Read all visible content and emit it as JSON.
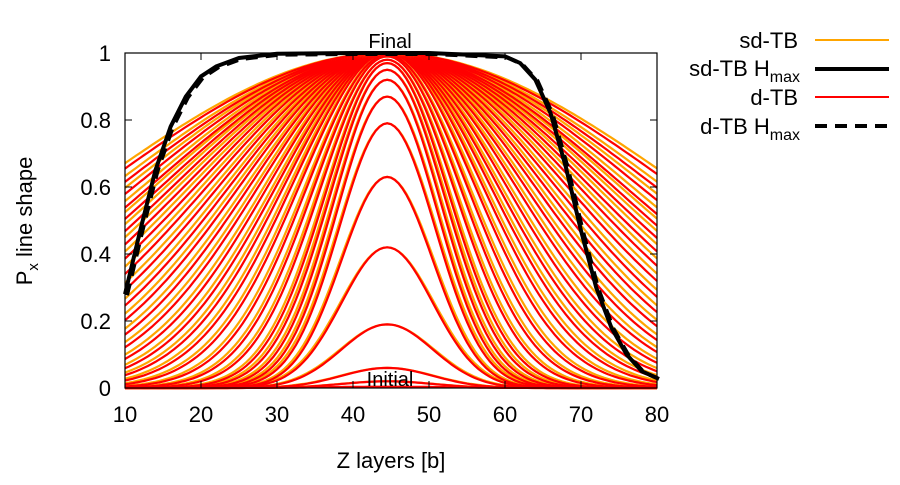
{
  "chart_data": {
    "type": "line",
    "xlabel": "Z layers [b]",
    "ylabel_main": "P",
    "ylabel_sub": "x",
    "ylabel_rest": " line shape",
    "xlim": [
      10,
      80
    ],
    "ylim": [
      0,
      1
    ],
    "x_ticks": [
      "10",
      "20",
      "30",
      "40",
      "50",
      "60",
      "70",
      "80"
    ],
    "y_ticks": [
      "0",
      "0.2",
      "0.4",
      "0.6",
      "0.8",
      "1"
    ],
    "annotations": {
      "final": "Final",
      "initial": "Initial"
    },
    "grid": false,
    "legend_position": "top-right, outside plot",
    "legend": [
      {
        "main": "sd-TB",
        "sub": "",
        "color": "#ffa500",
        "style": "solid",
        "weight": "thin"
      },
      {
        "main": "sd-TB H",
        "sub": "max",
        "color": "#000000",
        "style": "solid",
        "weight": "thick"
      },
      {
        "main": "d-TB",
        "sub": "",
        "color": "#ff0000",
        "style": "solid",
        "weight": "thin"
      },
      {
        "main": "d-TB H",
        "sub": "max",
        "color": "#000000",
        "style": "dashed",
        "weight": "thick"
      }
    ],
    "profile_center": 44.5,
    "series_family": {
      "description": "Gaussian-like line shapes broadening over iterations, from Initial (flat at 0) to Final (plateau at 1)",
      "peak_heights": [
        0.02,
        0.06,
        0.19,
        0.42,
        0.63,
        0.79,
        0.87,
        0.92,
        0.95,
        0.97,
        0.98,
        0.99,
        0.995,
        1,
        1,
        1,
        1,
        1,
        1,
        1,
        1,
        1,
        1,
        1,
        1,
        1,
        1,
        1,
        1,
        1,
        1,
        1
      ],
      "widths": [
        6,
        6,
        6,
        6,
        6,
        6.3,
        6.6,
        7,
        7.5,
        8,
        8.8,
        9.6,
        10.5,
        11.5,
        12.5,
        13.5,
        14.5,
        15.6,
        16.8,
        18,
        19.3,
        20.6,
        22,
        23.5,
        25,
        26.5,
        28,
        29.5,
        31,
        33,
        35,
        37.5
      ]
    },
    "final_curve": {
      "x": [
        10,
        12,
        14,
        16,
        18,
        20,
        22,
        25,
        30,
        40,
        50,
        60,
        62,
        64,
        66,
        68,
        70,
        72,
        74,
        76,
        78,
        80
      ],
      "y": [
        0.28,
        0.47,
        0.65,
        0.78,
        0.87,
        0.93,
        0.96,
        0.985,
        0.998,
        1,
        1,
        0.99,
        0.97,
        0.92,
        0.82,
        0.66,
        0.47,
        0.3,
        0.18,
        0.1,
        0.05,
        0.03
      ]
    }
  }
}
